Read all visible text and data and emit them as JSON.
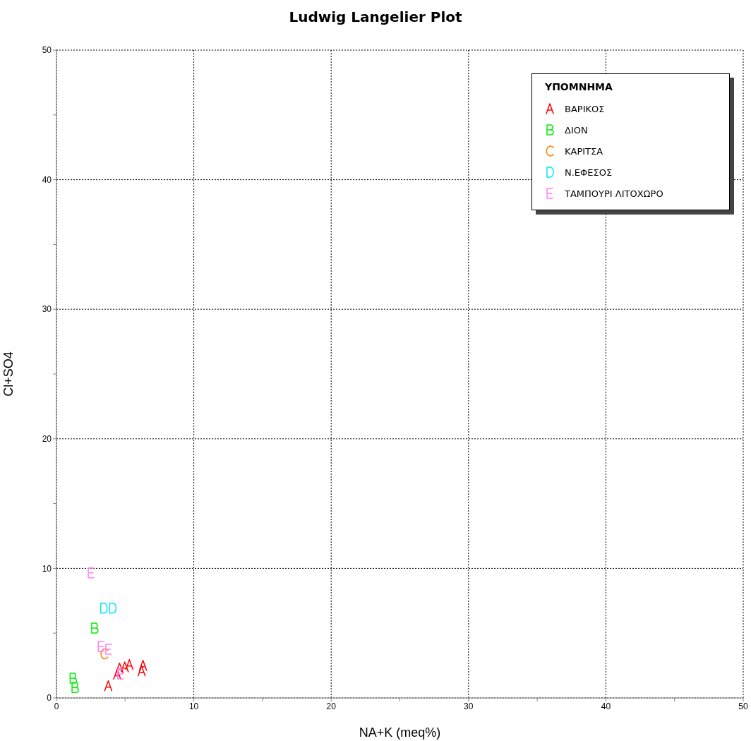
{
  "chart_data": {
    "type": "scatter",
    "title": "Ludwig Langelier Plot",
    "xlabel": "NA+K (meq%)",
    "ylabel": "Cl+SO4",
    "legend_title": "ΥΠΟΜΝΗΜΑ",
    "legend": "top right",
    "grid": true,
    "xlim": [
      0,
      50
    ],
    "ylim": [
      0,
      50
    ],
    "xticks": [
      0,
      {
        "value": 5,
        "label": null
      },
      10,
      {
        "value": 15,
        "label": null
      },
      20,
      {
        "value": 25,
        "label": null
      },
      30,
      {
        "value": 35,
        "label": null
      },
      40,
      {
        "value": 45,
        "label": null
      },
      50
    ],
    "yticks": [
      0,
      {
        "value": 5,
        "label": null
      },
      10,
      {
        "value": 15,
        "label": null
      },
      20,
      {
        "value": 25,
        "label": null
      },
      30,
      {
        "value": 35,
        "label": null
      },
      40,
      {
        "value": 45,
        "label": null
      },
      50
    ],
    "series": [
      {
        "name": "ΒΑΡΙΚΟΣ",
        "color": "#ff0000",
        "x": [
          4.59,
          4.97,
          5.31,
          6.3,
          6.2,
          4.42,
          3.77
        ],
        "values": [
          2.31,
          2.4,
          2.58,
          2.52,
          2.09,
          1.82,
          0.94
        ]
      },
      {
        "name": "ΔΙΟΝ",
        "color": "#00ee00",
        "x": [
          2.77,
          1.2,
          1.34
        ],
        "values": [
          5.39,
          1.52,
          0.8
        ]
      },
      {
        "name": "ΚΑΡΙΤΣΑ",
        "color": "#ff8000",
        "x": [
          3.48
        ],
        "values": [
          3.4
        ]
      },
      {
        "name": "Ν.ΕΦΕΣΟΣ",
        "color": "#00e5ff",
        "x": [
          3.43,
          4.08
        ],
        "values": [
          6.93,
          6.93
        ]
      },
      {
        "name": "ΤΑΜΠΟΥΡΙ ΛΙΤΟΧΩΡΟ",
        "color": "#ff80ff",
        "x": [
          2.52,
          3.25,
          3.8,
          4.66
        ],
        "values": [
          9.66,
          3.97,
          3.76,
          1.85
        ]
      }
    ]
  }
}
